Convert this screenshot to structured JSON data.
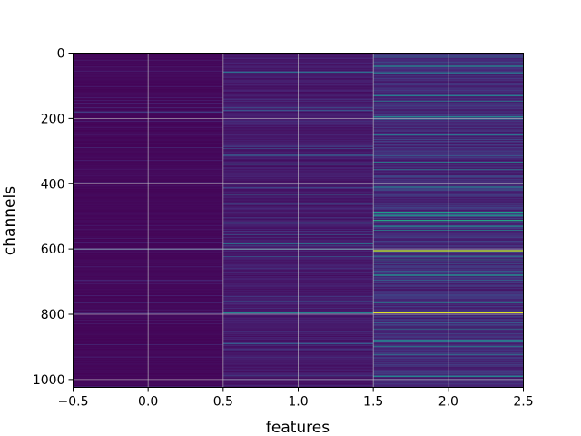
{
  "chart_data": {
    "type": "heatmap",
    "title": "",
    "xlabel": "features",
    "ylabel": "channels",
    "xlim": [
      -0.5,
      2.5
    ],
    "ylim": [
      1024,
      0
    ],
    "grid": true,
    "colormap": "viridis",
    "color_range": [
      0,
      1
    ],
    "x_ticks": [
      -0.5,
      0.0,
      0.5,
      1.0,
      1.5,
      2.0,
      2.5
    ],
    "x_tick_labels": [
      "−0.5",
      "0.0",
      "0.5",
      "1.0",
      "1.5",
      "2.0",
      "2.5"
    ],
    "y_ticks": [
      0,
      200,
      400,
      600,
      800,
      1000
    ],
    "y_tick_labels": [
      "0",
      "200",
      "400",
      "600",
      "800",
      "1000"
    ],
    "rows": 1024,
    "features": [
      0,
      1,
      2
    ],
    "background_level": [
      0.02,
      0.07,
      0.12
    ],
    "highlights": [
      {
        "feature": 0,
        "channel": 180,
        "value": 0.18
      },
      {
        "feature": 0,
        "channel": 397,
        "value": 0.12
      },
      {
        "feature": 0,
        "channel": 600,
        "value": 0.2
      },
      {
        "feature": 0,
        "channel": 797,
        "value": 0.12
      },
      {
        "feature": 1,
        "channel": 58,
        "value": 0.35
      },
      {
        "feature": 1,
        "channel": 175,
        "value": 0.25
      },
      {
        "feature": 1,
        "channel": 310,
        "value": 0.3
      },
      {
        "feature": 1,
        "channel": 520,
        "value": 0.28
      },
      {
        "feature": 1,
        "channel": 583,
        "value": 0.4
      },
      {
        "feature": 1,
        "channel": 600,
        "value": 0.3
      },
      {
        "feature": 1,
        "channel": 795,
        "value": 0.45
      },
      {
        "feature": 1,
        "channel": 890,
        "value": 0.28
      },
      {
        "feature": 2,
        "channel": 40,
        "value": 0.45
      },
      {
        "feature": 2,
        "channel": 60,
        "value": 0.38
      },
      {
        "feature": 2,
        "channel": 130,
        "value": 0.42
      },
      {
        "feature": 2,
        "channel": 195,
        "value": 0.45
      },
      {
        "feature": 2,
        "channel": 250,
        "value": 0.38
      },
      {
        "feature": 2,
        "channel": 335,
        "value": 0.5
      },
      {
        "feature": 2,
        "channel": 410,
        "value": 0.4
      },
      {
        "feature": 2,
        "channel": 487,
        "value": 0.55
      },
      {
        "feature": 2,
        "channel": 497,
        "value": 0.5
      },
      {
        "feature": 2,
        "channel": 512,
        "value": 0.58
      },
      {
        "feature": 2,
        "channel": 530,
        "value": 0.45
      },
      {
        "feature": 2,
        "channel": 605,
        "value": 0.9
      },
      {
        "feature": 2,
        "channel": 680,
        "value": 0.48
      },
      {
        "feature": 2,
        "channel": 795,
        "value": 0.95
      },
      {
        "feature": 2,
        "channel": 880,
        "value": 0.45
      },
      {
        "feature": 2,
        "channel": 990,
        "value": 0.45
      }
    ]
  }
}
